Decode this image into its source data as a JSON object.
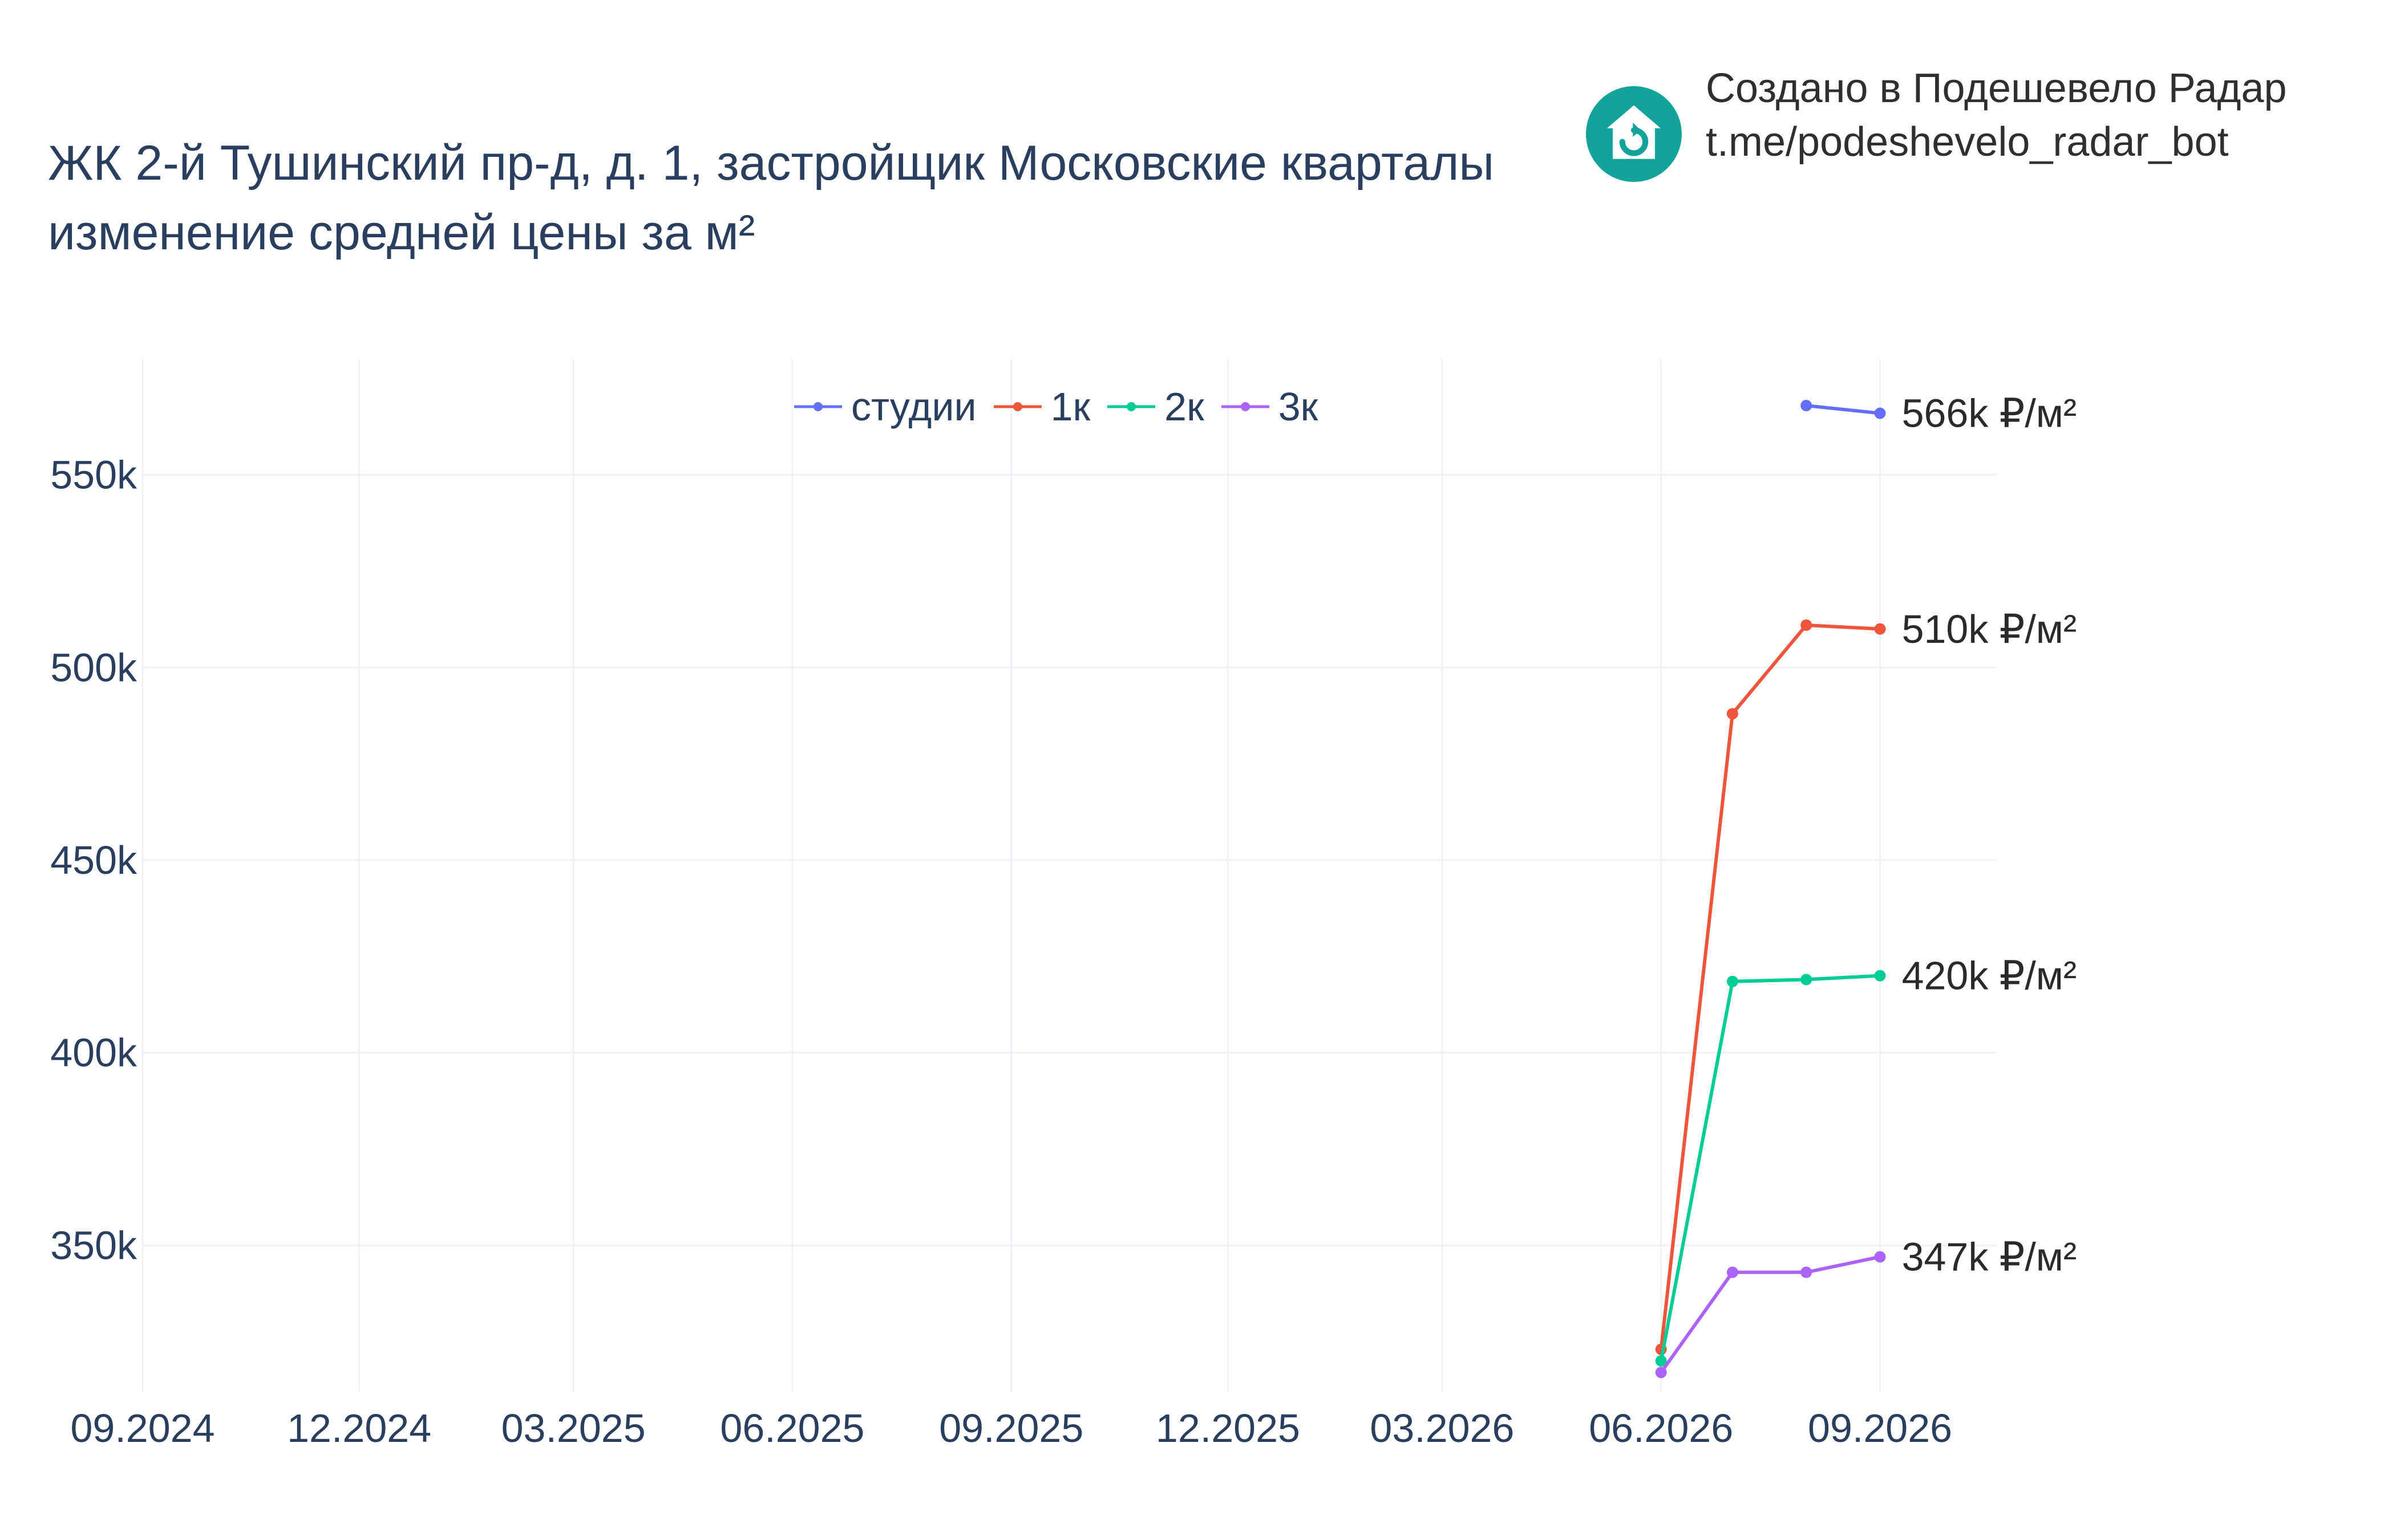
{
  "header": {
    "title_line1": "ЖК 2-й Тушинский пр-д, д. 1, застройщик Московские кварталы",
    "title_line2": "изменение средней цены за м²"
  },
  "credit": {
    "line1": "Создано в Подешевело Радар",
    "line2": "t.me/podeshevelo_radar_bot",
    "logo_icon": "house-refresh-icon",
    "logo_color": "#12a39b"
  },
  "chart_data": {
    "type": "line",
    "title": "",
    "xlabel": "",
    "ylabel": "",
    "x_ticks": [
      "09.2024",
      "12.2024",
      "03.2025",
      "06.2025",
      "09.2025",
      "12.2025",
      "03.2026",
      "06.2026",
      "09.2026"
    ],
    "x_range": [
      "2024-09-01",
      "2026-10-20"
    ],
    "ylim": [
      312000,
      580000
    ],
    "y_ticks": [
      350000,
      400000,
      450000,
      500000,
      550000
    ],
    "y_tick_labels": [
      "350k",
      "400k",
      "450k",
      "500k",
      "550k"
    ],
    "grid": true,
    "legend_position": "top-center",
    "series": [
      {
        "name": "студии",
        "color": "#636efa",
        "x": [
          "2026-08-01",
          "2026-09-01"
        ],
        "y": [
          568000,
          566000
        ],
        "end_label": "566k ₽/м²"
      },
      {
        "name": "1к",
        "color": "#ef553b",
        "x": [
          "2026-06-01",
          "2026-07-01",
          "2026-08-01",
          "2026-09-01"
        ],
        "y": [
          323000,
          488000,
          511000,
          510000
        ],
        "end_label": "510k ₽/м²"
      },
      {
        "name": "2к",
        "color": "#00cc96",
        "x": [
          "2026-06-01",
          "2026-07-01",
          "2026-08-01",
          "2026-09-01"
        ],
        "y": [
          320000,
          418500,
          419000,
          420000
        ],
        "end_label": "420k ₽/м²"
      },
      {
        "name": "3к",
        "color": "#ab63fa",
        "x": [
          "2026-06-01",
          "2026-07-01",
          "2026-08-01",
          "2026-09-01"
        ],
        "y": [
          317000,
          343000,
          343000,
          347000
        ],
        "end_label": "347k ₽/м²"
      }
    ]
  }
}
